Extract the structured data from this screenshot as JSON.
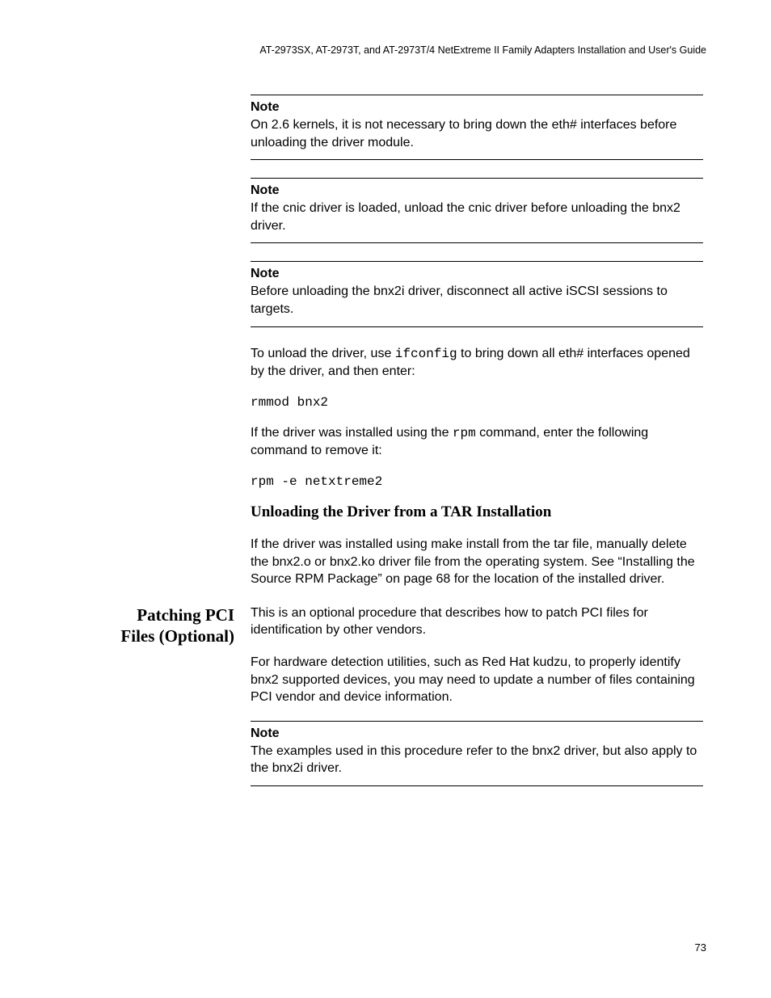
{
  "header": {
    "text": "AT-2973SX, AT-2973T, and AT-2973T/4 NetExtreme II Family Adapters Installation and User's Guide"
  },
  "notes": [
    {
      "label": "Note",
      "text": "On 2.6 kernels, it is not necessary to bring down the eth# interfaces before unloading the driver module."
    },
    {
      "label": "Note",
      "text": "If the cnic driver is loaded, unload the cnic driver before unloading the bnx2 driver."
    },
    {
      "label": "Note",
      "text": "Before unloading the bnx2i driver, disconnect all active iSCSI sessions to targets."
    }
  ],
  "body": {
    "unload_para_pre": "To unload the driver, use ",
    "unload_cmd_inline": "ifconfig",
    "unload_para_post": " to bring down all eth# interfaces opened by the driver, and then enter:",
    "cmd1": "rmmod bnx2",
    "rpm_para_pre": "If the driver was installed using the ",
    "rpm_inline": "rpm",
    "rpm_para_post": " command, enter the following command to remove it:",
    "cmd2": "rpm -e netxtreme2",
    "subhead": "Unloading the Driver from a TAR Installation",
    "tar_para": "If the driver was installed using make install from the tar file, manually delete the bnx2.o or bnx2.ko driver file from the operating system. See “Installing the Source RPM Package” on page 68 for the location of the installed driver."
  },
  "section": {
    "side_title_line1": "Patching PCI",
    "side_title_line2": "Files (Optional)",
    "para1": "This is an optional procedure that describes how to patch PCI files for identification by other vendors.",
    "para2": "For hardware detection utilities, such as Red Hat kudzu, to properly identify bnx2 supported devices, you may need to update a number of files containing PCI vendor and device information.",
    "note_label": "Note",
    "note_text": "The examples used in this procedure refer to the bnx2 driver, but also apply to the bnx2i driver."
  },
  "page_number": "73"
}
